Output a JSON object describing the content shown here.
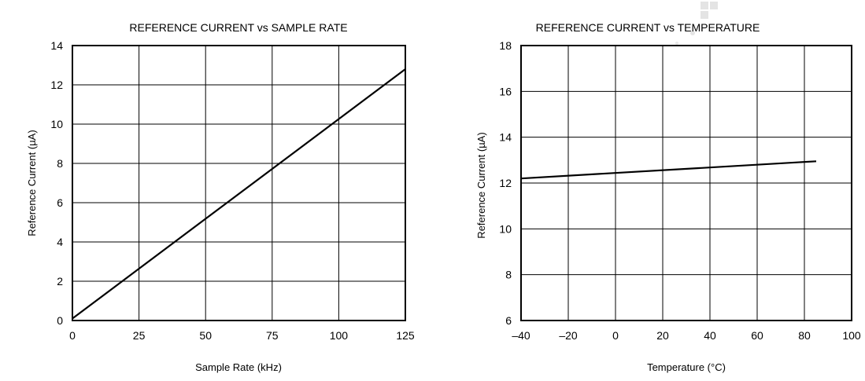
{
  "chart_data": [
    {
      "type": "line",
      "title": "REFERENCE CURRENT vs SAMPLE RATE",
      "xlabel": "Sample Rate (kHz)",
      "ylabel": "Reference Current (µA)",
      "xlim": [
        0,
        125
      ],
      "ylim": [
        0,
        14
      ],
      "x_ticks": [
        "0",
        "25",
        "50",
        "75",
        "100",
        "125"
      ],
      "y_ticks": [
        "0",
        "2",
        "4",
        "6",
        "8",
        "10",
        "12",
        "14"
      ],
      "grid": true,
      "series": [
        {
          "x": [
            0,
            125
          ],
          "y": [
            0.1,
            12.8
          ]
        }
      ]
    },
    {
      "type": "line",
      "title": "REFERENCE CURRENT vs TEMPERATURE",
      "xlabel": "Temperature (°C)",
      "ylabel": "Reference Current (µA)",
      "xlim": [
        -40,
        100
      ],
      "ylim": [
        6,
        18
      ],
      "x_ticks": [
        "–40",
        "–20",
        "0",
        "20",
        "40",
        "60",
        "80",
        "100"
      ],
      "y_ticks": [
        "6",
        "8",
        "10",
        "12",
        "14",
        "16",
        "18"
      ],
      "grid": true,
      "series": [
        {
          "x": [
            -40,
            85
          ],
          "y": [
            12.2,
            12.95
          ]
        }
      ]
    }
  ]
}
